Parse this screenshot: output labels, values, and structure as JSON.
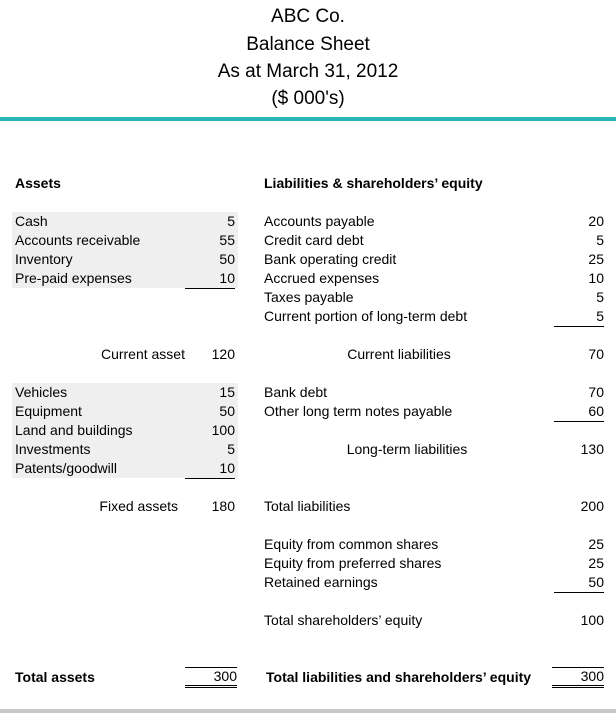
{
  "header": {
    "company": "ABC Co.",
    "title": "Balance Sheet",
    "date": "As at March 31, 2012",
    "units": "($ 000's)"
  },
  "colors": {
    "rule_teal": "#2bb4b4",
    "rule_gray": "#c8c8c8",
    "shade": "#efefef"
  },
  "assets": {
    "heading": "Assets",
    "current": [
      {
        "label": "Cash",
        "value": "5"
      },
      {
        "label": "Accounts receivable",
        "value": "55"
      },
      {
        "label": "Inventory",
        "value": "50"
      },
      {
        "label": "Pre-paid expenses",
        "value": "10"
      }
    ],
    "current_total": {
      "label": "Current asset",
      "value": "120"
    },
    "fixed": [
      {
        "label": "Vehicles",
        "value": "15"
      },
      {
        "label": "Equipment",
        "value": "50"
      },
      {
        "label": "Land and buildings",
        "value": "100"
      },
      {
        "label": "Investments",
        "value": "5"
      },
      {
        "label": "Patents/goodwill",
        "value": "10"
      }
    ],
    "fixed_total": {
      "label": "Fixed assets",
      "value": "180"
    },
    "grand_total": {
      "label": "Total assets",
      "value": "300"
    }
  },
  "liabilities": {
    "heading": "Liabilities & shareholders’ equity",
    "current": [
      {
        "label": "Accounts payable",
        "value": "20"
      },
      {
        "label": "Credit card debt",
        "value": "5"
      },
      {
        "label": "Bank operating credit",
        "value": "25"
      },
      {
        "label": "Accrued expenses",
        "value": "10"
      },
      {
        "label": "Taxes payable",
        "value": "5"
      },
      {
        "label": "Current portion of long-term debt",
        "value": "5"
      }
    ],
    "current_total": {
      "label": "Current liabilities",
      "value": "70"
    },
    "long_term": [
      {
        "label": "Bank debt",
        "value": "70"
      },
      {
        "label": "Other long term notes payable",
        "value": "60"
      }
    ],
    "long_term_total": {
      "label": "Long-term liabilities",
      "value": "130"
    },
    "total_liabilities": {
      "label": "Total liabilities",
      "value": "200"
    },
    "equity": [
      {
        "label": "Equity from common shares",
        "value": "25"
      },
      {
        "label": "Equity from preferred shares",
        "value": "25"
      },
      {
        "label": "Retained earnings",
        "value": "50"
      }
    ],
    "total_equity": {
      "label": "Total shareholders’ equity",
      "value": "100"
    },
    "grand_total": {
      "label": "Total liabilities and shareholders’ equity",
      "value": "300"
    }
  }
}
